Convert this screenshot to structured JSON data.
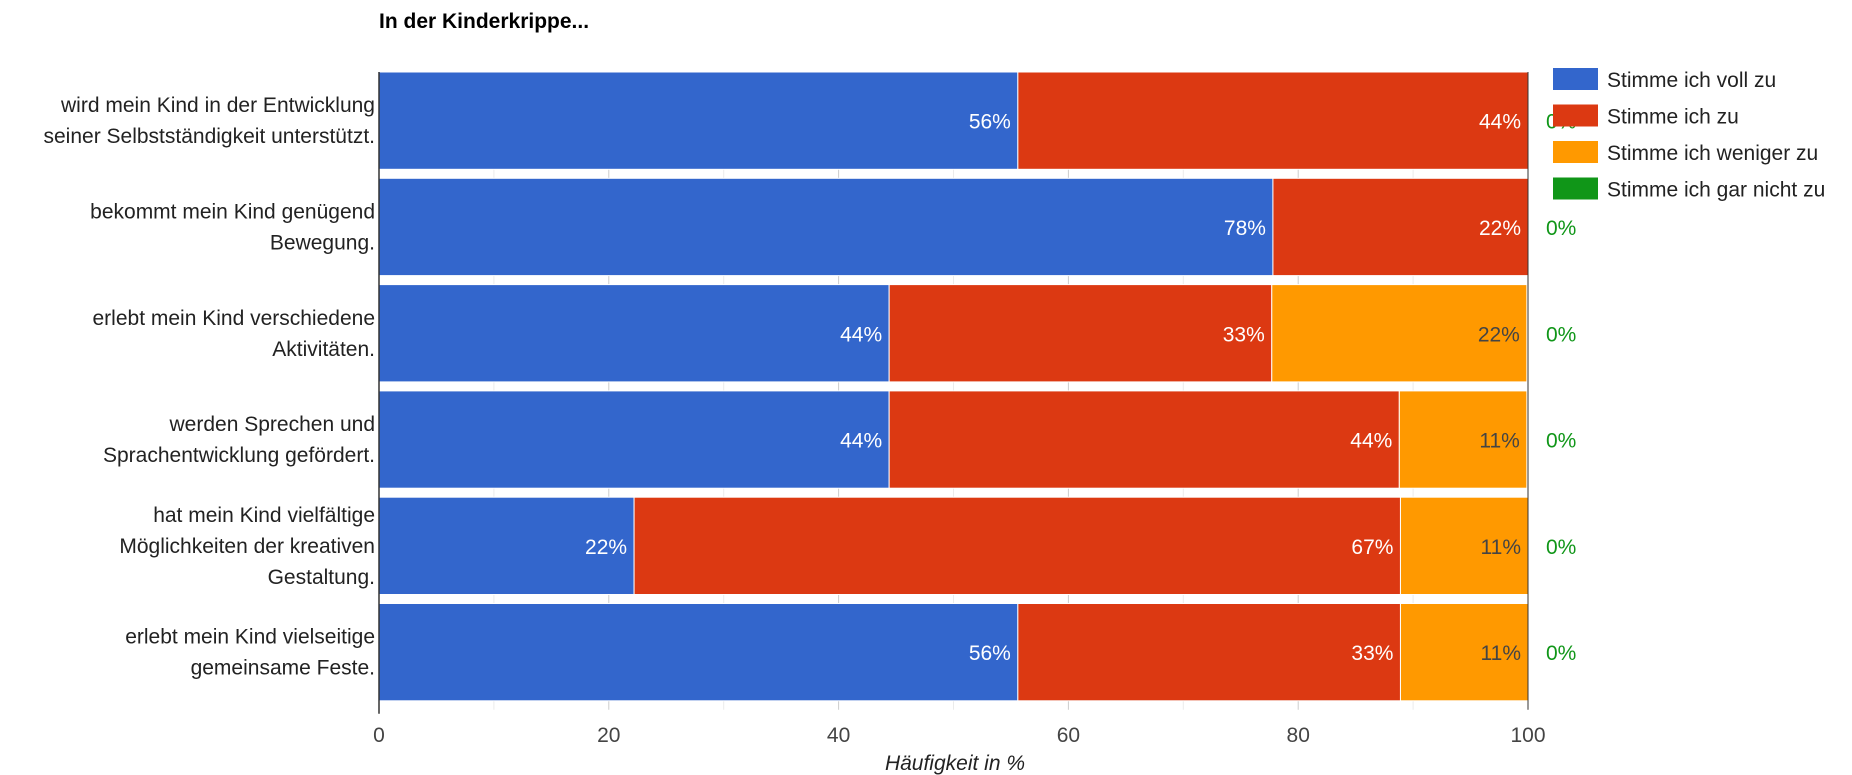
{
  "chart_data": {
    "type": "bar",
    "orientation": "horizontal",
    "stacked": true,
    "title": "In der Kinderkrippe...",
    "xlabel": "Häufigkeit in %",
    "ylabel": "",
    "xlim": [
      0,
      100
    ],
    "xticks": [
      0,
      20,
      40,
      60,
      80,
      100
    ],
    "grid": true,
    "legend_position": "right",
    "categories": [
      [
        "wird mein Kind in der Entwicklung",
        "seiner Selbstständigkeit unterstützt."
      ],
      [
        "bekommt mein Kind genügend",
        "Bewegung."
      ],
      [
        "erlebt mein Kind verschiedene",
        "Aktivitäten."
      ],
      [
        "werden Sprechen und",
        "Sprachentwicklung gefördert."
      ],
      [
        "hat mein Kind vielfältige",
        "Möglichkeiten der kreativen",
        "Gestaltung."
      ],
      [
        "erlebt mein Kind vielseitige",
        "gemeinsame Feste."
      ]
    ],
    "series": [
      {
        "name": "Stimme ich voll zu",
        "color": "#3366cc",
        "label_color": "#ffffff",
        "values": [
          55.6,
          77.8,
          44.4,
          44.4,
          22.2,
          55.6
        ],
        "labels": [
          "56%",
          "78%",
          "44%",
          "44%",
          "22%",
          "56%"
        ]
      },
      {
        "name": "Stimme ich zu",
        "color": "#dc3912",
        "label_color": "#ffffff",
        "values": [
          44.4,
          22.2,
          33.3,
          44.4,
          66.7,
          33.3
        ],
        "labels": [
          "44%",
          "22%",
          "33%",
          "44%",
          "67%",
          "33%"
        ]
      },
      {
        "name": "Stimme ich weniger zu",
        "color": "#ff9900",
        "label_color": "#444444",
        "values": [
          0,
          0,
          22.2,
          11.1,
          11.1,
          11.1
        ],
        "labels": [
          "",
          "",
          "22%",
          "11%",
          "11%",
          "11%"
        ]
      },
      {
        "name": "Stimme ich gar nicht zu",
        "color": "#109618",
        "label_color": "#109618",
        "values": [
          0,
          0,
          0,
          0,
          0,
          0
        ],
        "labels": [
          "0%",
          "0%",
          "0%",
          "0%",
          "0%",
          "0%"
        ]
      }
    ]
  }
}
